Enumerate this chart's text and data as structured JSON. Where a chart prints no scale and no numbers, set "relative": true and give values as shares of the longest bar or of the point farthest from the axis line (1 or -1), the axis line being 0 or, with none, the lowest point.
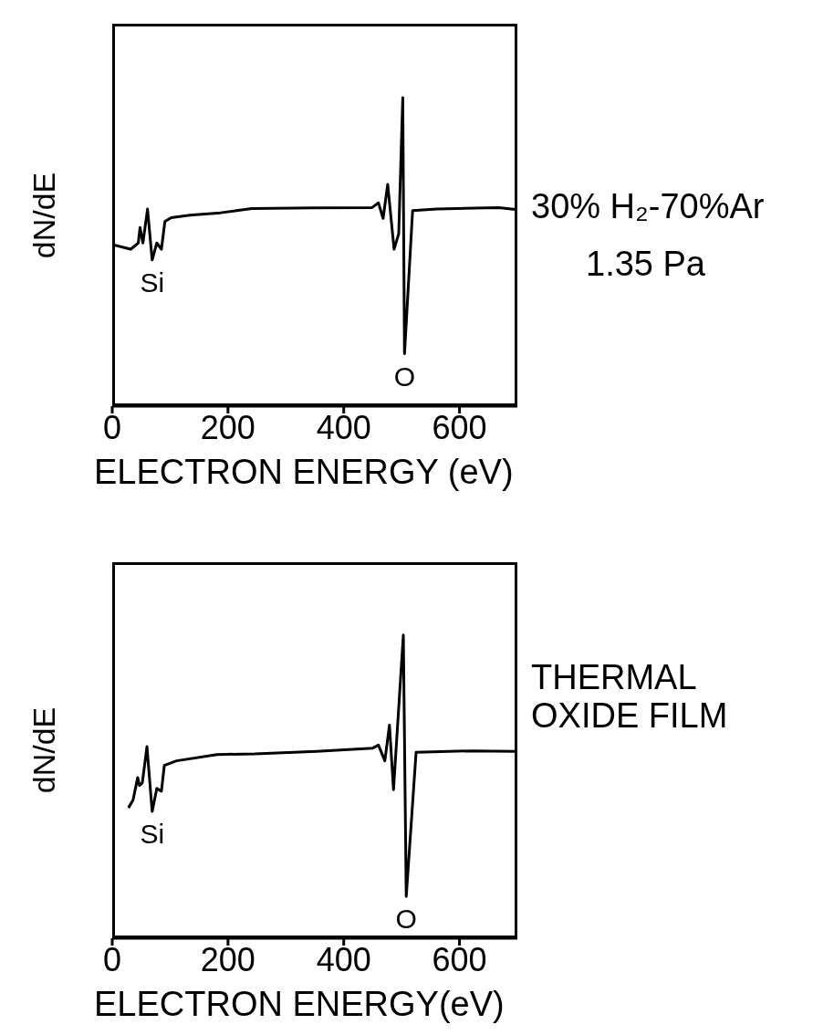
{
  "chart_data": [
    {
      "type": "line",
      "relative": true,
      "xlabel": "ELECTRON ENERGY (eV)",
      "ylabel": "dN/dE",
      "xlim": [
        0,
        700
      ],
      "xticks": [
        0,
        200,
        400,
        600
      ],
      "x": [
        0,
        32,
        45,
        48,
        53,
        61,
        69,
        77,
        85,
        91,
        102,
        134,
        187,
        241,
        348,
        449,
        460,
        468,
        476,
        487,
        495,
        502,
        505,
        519,
        561,
        668,
        700
      ],
      "series": [
        {
          "color": "#000000",
          "values": [
            0.524,
            0.509,
            0.529,
            0.579,
            0.529,
            0.639,
            0.474,
            0.529,
            0.509,
            0.599,
            0.611,
            0.619,
            0.627,
            0.641,
            0.643,
            0.644,
            0.659,
            0.609,
            0.719,
            0.509,
            0.559,
            1.0,
            0.17,
            0.634,
            0.639,
            0.644,
            0.637
          ]
        }
      ],
      "annotations": [
        {
          "text": "Si",
          "x": 69,
          "y": 0.474
        },
        {
          "text": "O",
          "x": 505,
          "y": 0.17
        },
        "30% H₂-70%Ar",
        "1.35 Pa"
      ]
    },
    {
      "type": "line",
      "relative": true,
      "xlabel": "ELECTRON ENERGY(eV)",
      "ylabel": "dN/dE",
      "xlim": [
        0,
        700
      ],
      "xticks": [
        0,
        200,
        400,
        600
      ],
      "x": [
        28,
        36,
        44,
        47,
        52,
        60,
        69,
        77,
        85,
        90,
        111,
        181,
        246,
        353,
        450,
        460,
        471,
        479,
        486,
        503,
        508,
        525,
        621,
        697
      ],
      "series": [
        {
          "color": "#000000",
          "values": [
            0.43,
            0.456,
            0.53,
            0.504,
            0.513,
            0.632,
            0.418,
            0.494,
            0.485,
            0.57,
            0.585,
            0.606,
            0.608,
            0.616,
            0.627,
            0.637,
            0.585,
            0.703,
            0.49,
            1.0,
            0.138,
            0.613,
            0.618,
            0.616
          ]
        }
      ],
      "annotations": [
        {
          "text": "Si",
          "x": 69,
          "y": 0.418
        },
        {
          "text": "O",
          "x": 508,
          "y": 0.138
        },
        "THERMAL OXIDE FILM"
      ]
    }
  ]
}
